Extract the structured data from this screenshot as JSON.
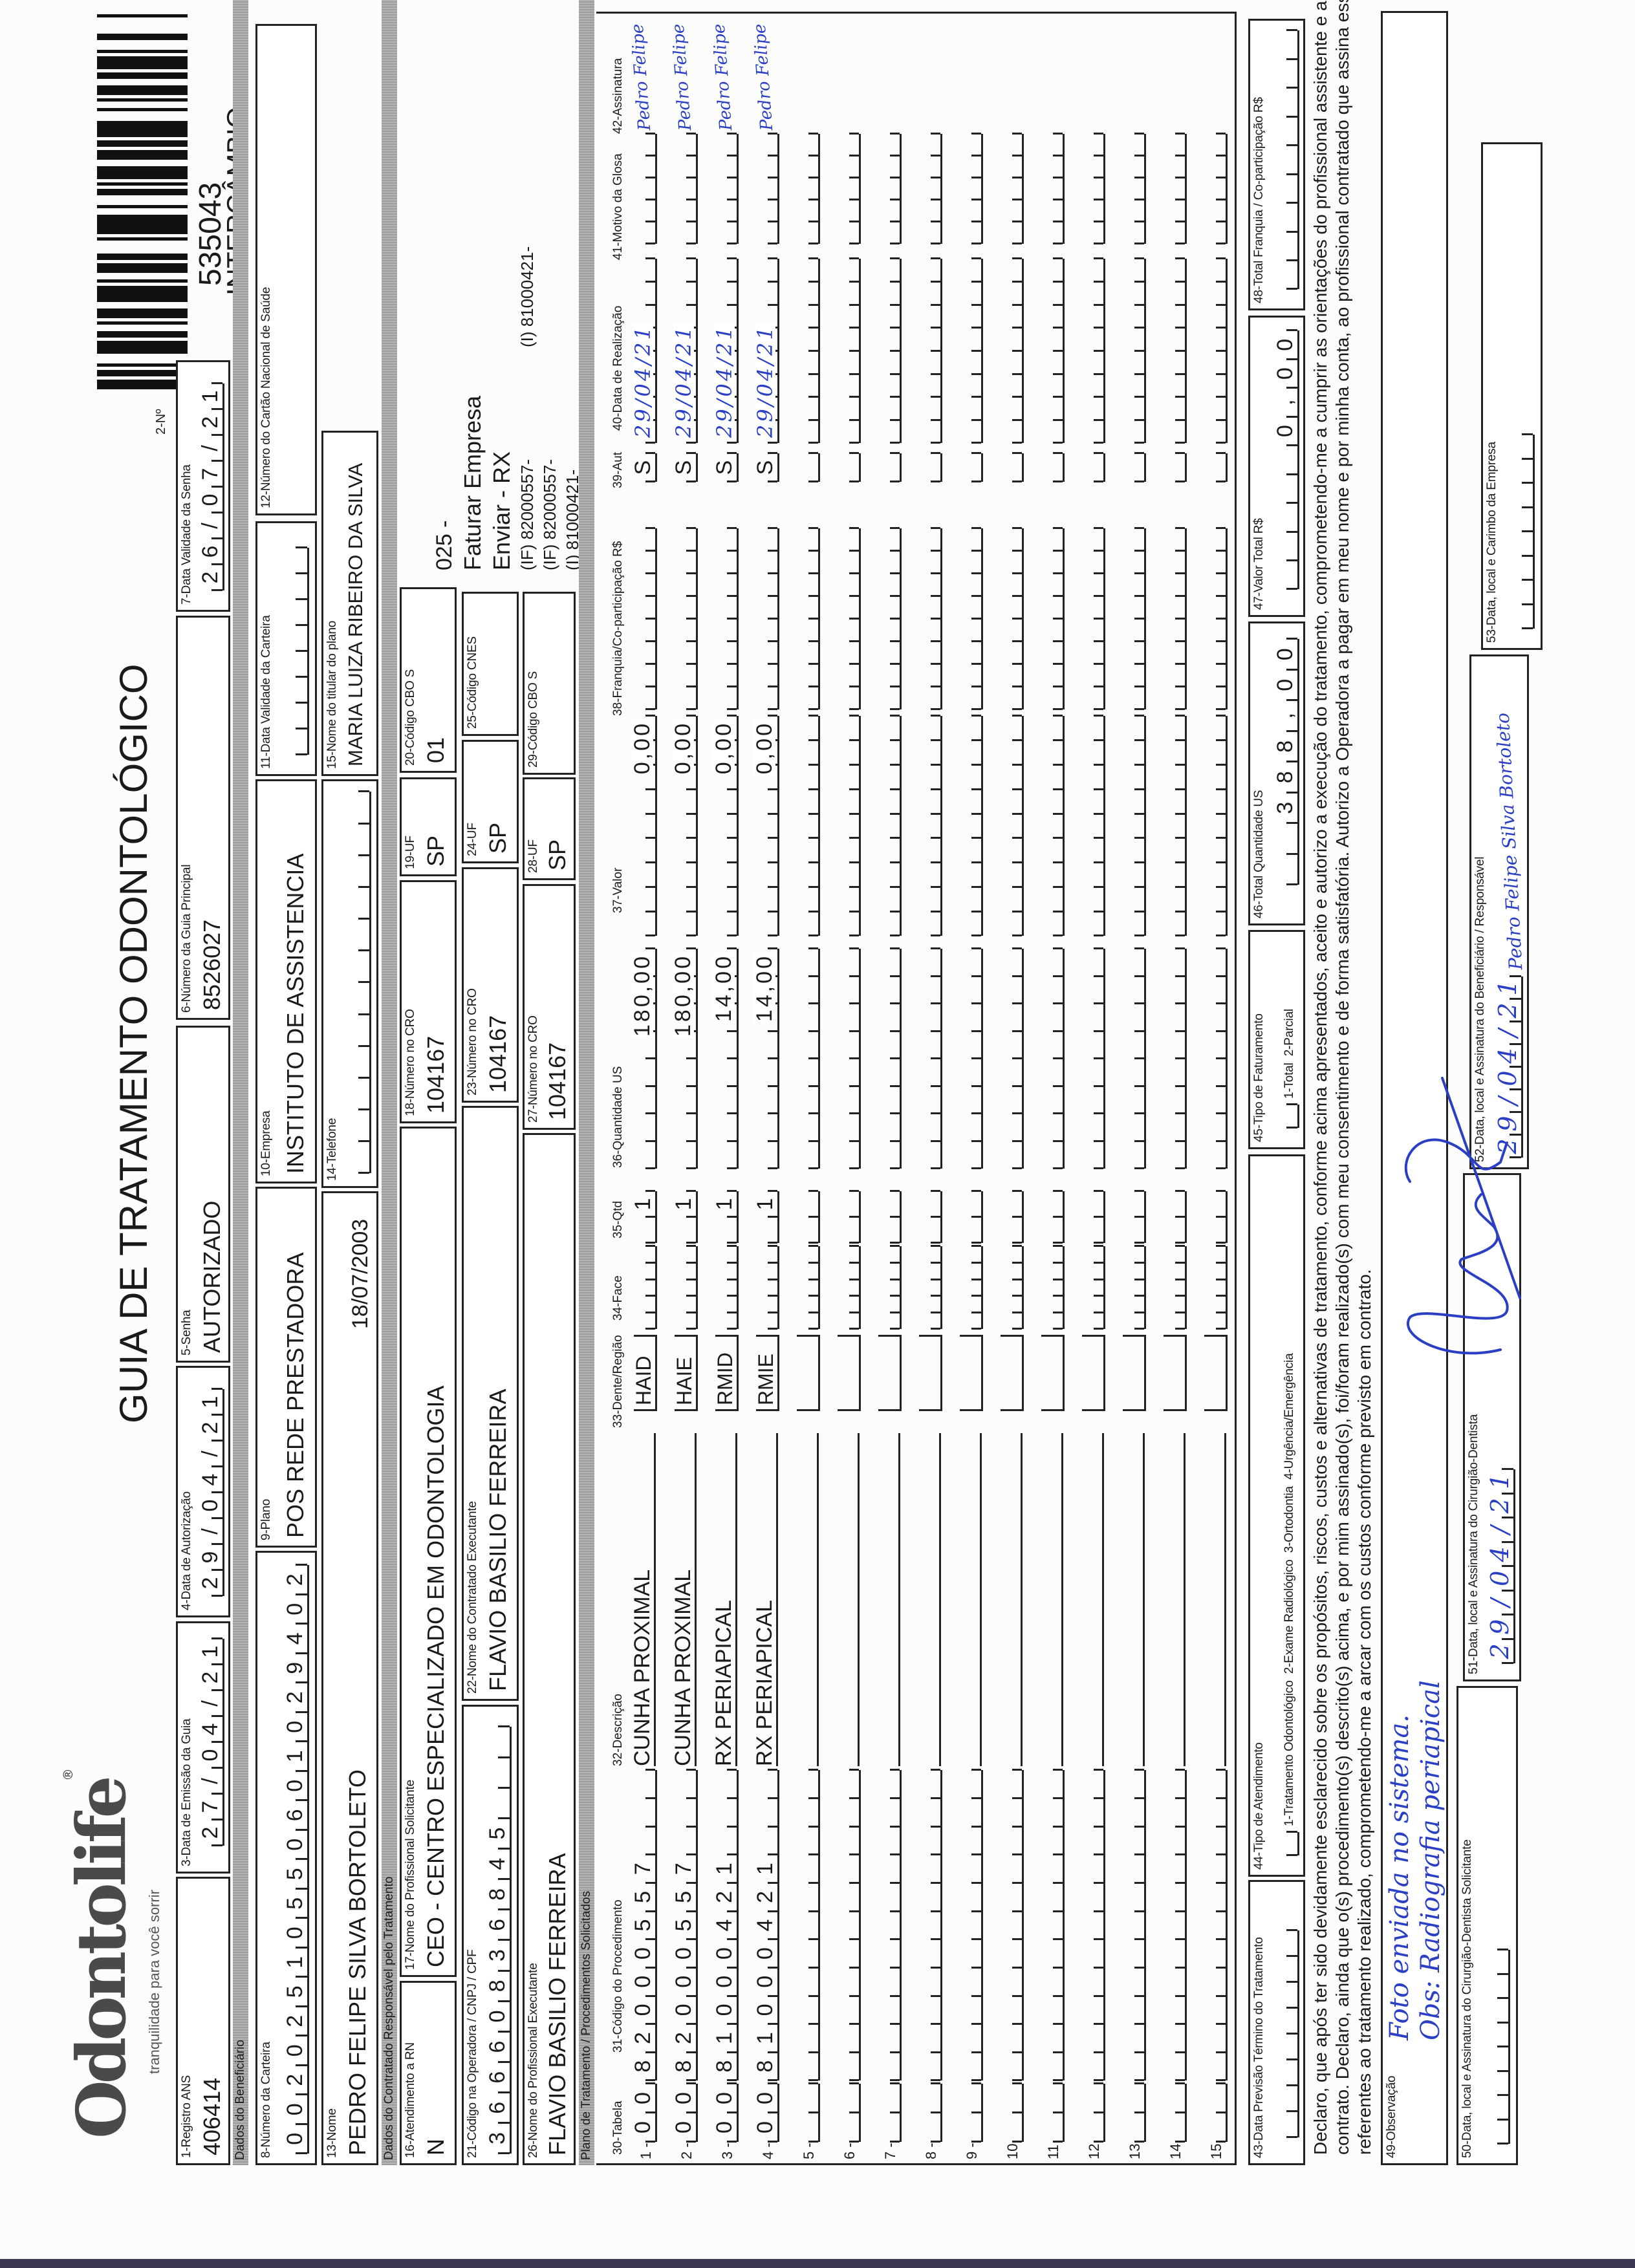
{
  "header": {
    "logo": "Odontolife",
    "logo_mark": "®",
    "tagline": "tranquilidade para você sorrir",
    "title": "GUIA DE TRATAMENTO ODONTOLÓGICO",
    "numero_label": "2-Nº",
    "guide_number": "535043",
    "guide_type": "INTERCÂMBIO"
  },
  "sections": {
    "beneficiario": "Dados do Beneficiário",
    "contratado": "Dados do Contratado Responsável pelo Tratamento",
    "plano": "Plano de Tratamento / Procedimentos Solicitados"
  },
  "fields": {
    "registro_ans": {
      "label": "1-Registro ANS",
      "value": "406414"
    },
    "data_emissao": {
      "label": "3-Data de Emissão da Guia",
      "value": "27/04/21"
    },
    "data_autorizacao": {
      "label": "4-Data de Autorização",
      "value": "29/04/21"
    },
    "senha": {
      "label": "5-Senha",
      "value": "AUTORIZADO"
    },
    "guia_principal": {
      "label": "6-Número da Guia Principal",
      "value": "8526027"
    },
    "validade_senha": {
      "label": "7-Data Validade da Senha",
      "value": "26/07/21"
    },
    "numero_carteira": {
      "label": "8-Número da Carteira",
      "value": "00202510550601029402"
    },
    "plano": {
      "label": "9-Plano",
      "value": "POS REDE PRESTADORA"
    },
    "empresa": {
      "label": "10-Empresa",
      "value": "INSTITUTO DE ASSISTENCIA"
    },
    "validade_carteira": {
      "label": "11-Data Validade da Carteira"
    },
    "cartao_nacional": {
      "label": "12-Número do Cartão Nacional de Saúde"
    },
    "nome": {
      "label": "13-Nome",
      "value": "PEDRO FELIPE SILVA BORTOLETO",
      "extra": "18/07/2003"
    },
    "telefone": {
      "label": "14-Telefone"
    },
    "titular": {
      "label": "15-Nome do titular do plano",
      "value": "MARIA LUIZA RIBEIRO DA SILVA"
    },
    "atendimento_rn": {
      "label": "16-Atendimento a RN",
      "value": "N"
    },
    "profissional_solicitante": {
      "label": "17-Nome do Profissional Solicitante",
      "value": "CEO - CENTRO ESPECIALIZADO EM ODONTOLOGIA"
    },
    "cro_solicitante": {
      "label": "18-Número no CRO",
      "value": "104167"
    },
    "uf_solicitante": {
      "label": "19-UF",
      "value": "SP"
    },
    "cbo_solicitante": {
      "label": "20-Código CBO S",
      "value": "01"
    },
    "codigo_operadora": {
      "label": "21-Código na Operadora / CNPJ / CPF",
      "value": "36660836845"
    },
    "contratado_executante": {
      "label": "22-Nome do Contratado Executante",
      "value": "FLAVIO BASILIO FERREIRA"
    },
    "cro_contratado": {
      "label": "23-Número no CRO",
      "value": "104167"
    },
    "uf_contratado": {
      "label": "24-UF",
      "value": "SP"
    },
    "cnes": {
      "label": "25-Código CNES"
    },
    "profissional_executante": {
      "label": "26-Nome do Profissional Executante",
      "value": "FLAVIO BASILIO FERREIRA"
    },
    "cro_executante": {
      "label": "27-Número no CRO",
      "value": "104167"
    },
    "uf_executante": {
      "label": "28-UF",
      "value": "SP"
    },
    "cbo_executante": {
      "label": "29-Código CBO S"
    }
  },
  "side_notes": [
    "025 -",
    "Faturar Empresa",
    "Enviar - RX",
    "(IF) 82000557-",
    "(IF) 82000557-",
    "(I) 81000421-",
    "(I) 81000421-"
  ],
  "table": {
    "headers": [
      "30-Tabela",
      "31-Código do Procedimento",
      "32-Descrição",
      "33-Dente/Região",
      "34-Face",
      "35-Qtd",
      "36-Quantidade US",
      "37-Valor",
      "38-Franquia/Co-participação R$",
      "39-Aut",
      "40-Data de Realização",
      "41-Motivo da Glosa",
      "42-Assinatura"
    ],
    "rows": [
      {
        "num": "1 -",
        "tabela": "00",
        "codigo": "82000557",
        "descricao": "CUNHA PROXIMAL",
        "dente": "HAID",
        "qtd": "1",
        "us": "180,00",
        "valor": "0,00",
        "aut": "S",
        "data": "29/04/21",
        "assinatura": "Pedro Felipe"
      },
      {
        "num": "2 -",
        "tabela": "00",
        "codigo": "82000557",
        "descricao": "CUNHA PROXIMAL",
        "dente": "HAIE",
        "qtd": "1",
        "us": "180,00",
        "valor": "0,00",
        "aut": "S",
        "data": "29/04/21",
        "assinatura": "Pedro Felipe"
      },
      {
        "num": "3 -",
        "tabela": "00",
        "codigo": "81000421",
        "descricao": "RX PERIAPICAL",
        "dente": "RMID",
        "qtd": "1",
        "us": "14,00",
        "valor": "0,00",
        "aut": "S",
        "data": "29/04/21",
        "assinatura": "Pedro Felipe"
      },
      {
        "num": "4 -",
        "tabela": "00",
        "codigo": "81000421",
        "descricao": "RX PERIAPICAL",
        "dente": "RMIE",
        "qtd": "1",
        "us": "14,00",
        "valor": "0,00",
        "aut": "S",
        "data": "29/04/21",
        "assinatura": "Pedro Felipe"
      },
      {
        "num": "5 -"
      },
      {
        "num": "6 -"
      },
      {
        "num": "7 -"
      },
      {
        "num": "8 -"
      },
      {
        "num": "9 -"
      },
      {
        "num": "10"
      },
      {
        "num": "11"
      },
      {
        "num": "12"
      },
      {
        "num": "13"
      },
      {
        "num": "14"
      },
      {
        "num": "15"
      }
    ]
  },
  "totals": {
    "previsao_termino": {
      "label": "43-Data Previsão Término do Tratamento"
    },
    "tipo_atendimento": {
      "label": "44-Tipo de Atendimento",
      "options": "1-Tratamento Odontológico  2-Exame Radiológico  3-Ortodontia  4-Urgência/Emergência"
    },
    "tipo_faturamento": {
      "label": "45-Tipo de Faturamento",
      "options": "1-Total  2-Parcial"
    },
    "total_us": {
      "label": "46-Total Quantidade US",
      "value": "388,00"
    },
    "valor_total": {
      "label": "47-Valor Total R$",
      "value": "0,00"
    },
    "total_franquia": {
      "label": "48-Total Franquia / Co-participação R$"
    }
  },
  "declaration": [
    "Declaro, que após ter sido devidamente esclarecido sobre os propósitos, riscos, custos e alternativas de tratamento, conforme acima apresentados, aceito e autorizo a execução do tratamento, comprometendo-me a cumprir as orientações do profissional assistente e arcar com os custos previstos em",
    "contrato. Declaro, ainda que o(s) procedimento(s) descrito(s) acima, e por mim assinado(s), foi/foram realizado(s) com meu consentimento e de forma satisfatória. Autorizo a Operadora a pagar em meu nome e por minha conta, ao profissional contratado que assina esse documento, os valores",
    "referentes ao tratamento realizado, comprometendo-me a arcar com os custos conforme previsto em contrato."
  ],
  "observacao": {
    "label": "49-Observação",
    "lines": [
      "Foto enviada no sistema.",
      "Obs: Radiografia periapical"
    ]
  },
  "signatures": {
    "solicitante": {
      "label": "50-Data, local e Assinatura do Cirurgião-Dentista Solicitante"
    },
    "executante": {
      "label": "51-Data, local e Assinatura do Cirurgião-Dentista",
      "date": "29/04/21"
    },
    "beneficiario": {
      "label": "52-Data, local e Assinatura do Beneficiário / Responsável",
      "date": "29/04/21",
      "name": "Pedro Felipe Silva Bortoleto"
    },
    "empresa": {
      "label": "53-Data, local e Carimbo da Empresa"
    }
  },
  "colors": {
    "ink": "#1a1a1a",
    "pen": "#2a3fc4",
    "band": "#a8a8a8"
  }
}
